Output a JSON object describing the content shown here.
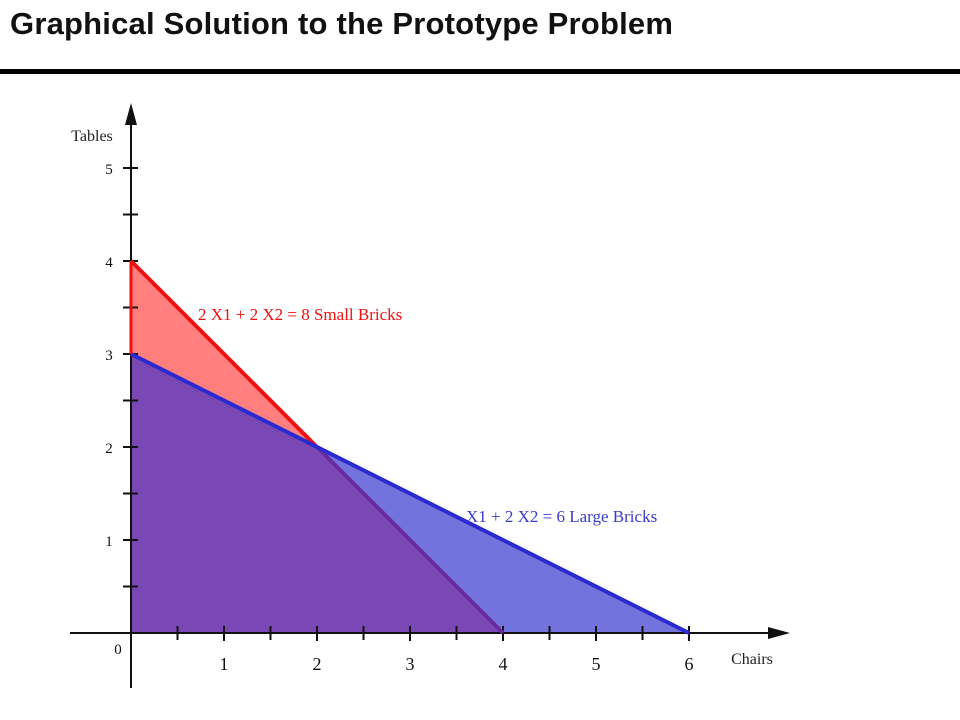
{
  "title": "Graphical Solution to the Prototype Problem",
  "chart_data": {
    "type": "area",
    "title": "",
    "xlabel": "Chairs",
    "ylabel": "Tables",
    "xlim": [
      0,
      6.8
    ],
    "ylim": [
      0,
      5.5
    ],
    "origin_label": "0",
    "x_ticks": [
      1,
      2,
      3,
      4,
      5,
      6
    ],
    "y_ticks": [
      1,
      2,
      3,
      4,
      5
    ],
    "grid": false,
    "constraints": [
      {
        "name": "small",
        "label": "2 X1 + 2 X2 = 8 Small Bricks",
        "points": [
          [
            0,
            4
          ],
          [
            4,
            0
          ]
        ],
        "line_color": "#ee1111",
        "fill_color": "#ff7f7f"
      },
      {
        "name": "large",
        "label": "X1 + 2 X2 = 6 Large Bricks",
        "points": [
          [
            0,
            3
          ],
          [
            6,
            0
          ]
        ],
        "line_color": "#2a2ad0",
        "fill_color": "#7373dd"
      }
    ],
    "overlap_color": "#7a48b4",
    "overlap_line_color": "#6a2aa0",
    "intersection": [
      2,
      2
    ]
  }
}
